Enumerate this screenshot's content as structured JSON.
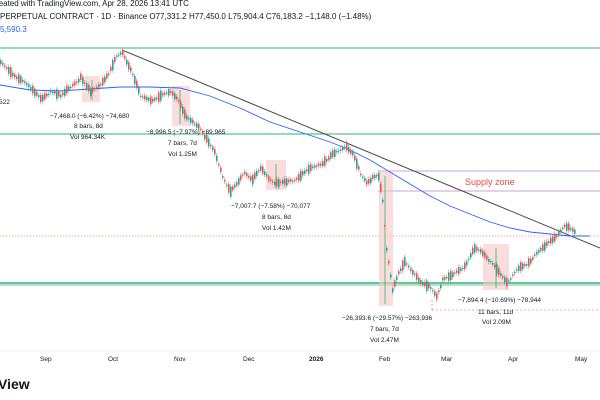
{
  "header": {
    "title_line": "PERPETUAL CONTRACT · 1D · Binance  O77,331.2  H77,450.0  L75,904.4  C76,183.2  −1,148.0 (−1.48%)",
    "created_line": "reated with TradingView.com, Apr 28, 2026 13:41 UTC",
    "ma_value": "5,590.3"
  },
  "left_labels": {
    "price_522": "522"
  },
  "annotations": {
    "a1_range": "−7,468.0 (−6.42%) −74,680",
    "a1_bars": "8 bars, 8d",
    "a1_vol": "Vol 964.34K",
    "a2_range": "−8,996.5 (−7.97%) −89,965",
    "a2_bars": "7 bars, 7d",
    "a2_vol": "Vol 1.25M",
    "a3_range": "−7,007.7 (−7.58%) −70,077",
    "a3_bars": "8 bars, 8d",
    "a3_vol": "Vol 1.42M",
    "a4_range": "−26,393.6 (−29.57%) −263,936",
    "a4_bars": "7 bars, 7d",
    "a4_vol": "Vol 2.47M",
    "a5_range": "−7,894.4 (−10.69%) −78,944",
    "a5_bars": "11 bars, 11d",
    "a5_vol": "Vol 2.09M",
    "supply_zone": "Supply zone"
  },
  "x_axis": {
    "labels": [
      "Sep",
      "Oct",
      "Nov",
      "Dec",
      "2026",
      "Feb",
      "Mar",
      "Apr",
      "May"
    ]
  },
  "footer": {
    "logo_text": "View"
  },
  "colors": {
    "up": "#26a69a",
    "down": "#ef5350",
    "ma": "#2962ff",
    "trend": "#4a4a4a",
    "zone_green": "#2bb673",
    "supply": "#e8494c",
    "range_fill": "#f7c7c5"
  }
}
